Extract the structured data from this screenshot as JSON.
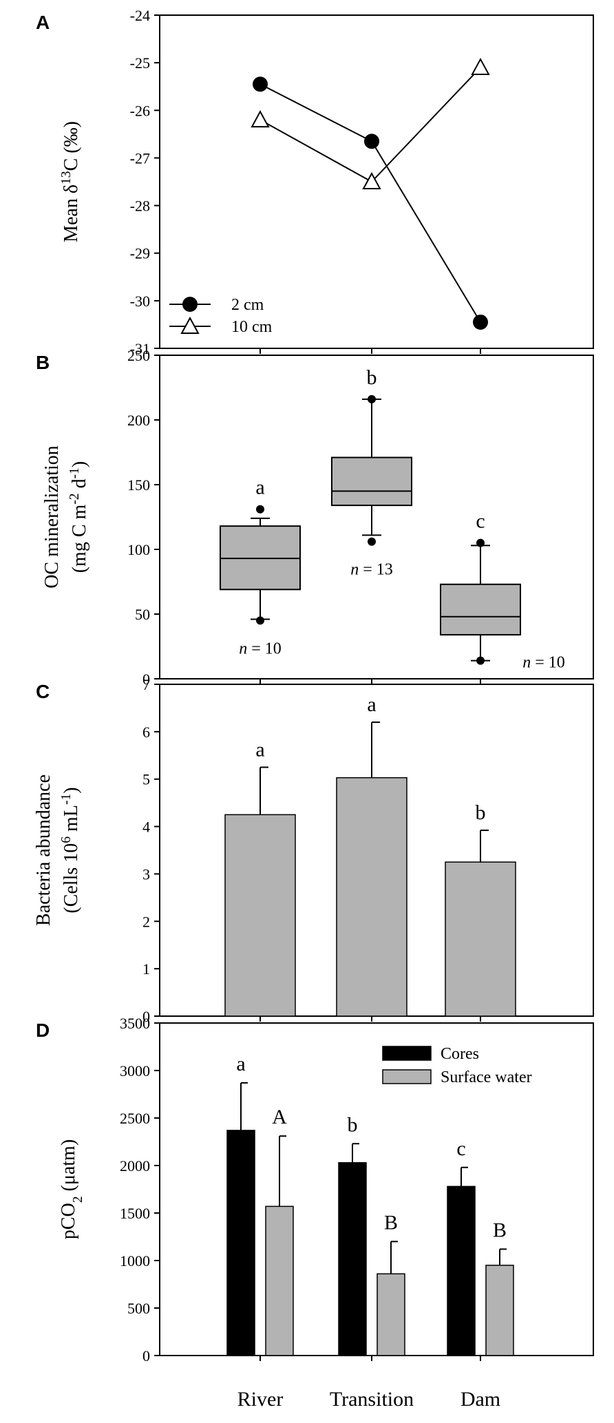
{
  "chart_data": [
    {
      "panel": "A",
      "type": "line",
      "ylabel": "Mean δ13C (‰)",
      "ylabel_parts": [
        "Mean δ",
        "13",
        "C (‰)"
      ],
      "ylim": [
        -31,
        -24
      ],
      "yticks": [
        -31,
        -30,
        -29,
        -28,
        -27,
        -26,
        -25,
        -24
      ],
      "ytick_labels": [
        "-31",
        "-30",
        "-29",
        "-28",
        "-27",
        "-26",
        "-25",
        "-24"
      ],
      "categories": [
        "River",
        "Transition",
        "Dam"
      ],
      "series": [
        {
          "name": "2 cm",
          "marker": "filled-circle",
          "values": [
            -25.45,
            -26.65,
            -30.45
          ]
        },
        {
          "name": "10 cm",
          "marker": "open-triangle",
          "values": [
            -26.2,
            -27.5,
            -25.1
          ]
        }
      ],
      "legend_position": "bottom-left"
    },
    {
      "panel": "B",
      "type": "box",
      "ylabel_line1": "OC mineralization",
      "ylabel_line2_parts": [
        "(mg C m",
        "-2",
        " d",
        "-1",
        ")"
      ],
      "ylim": [
        0,
        250
      ],
      "yticks": [
        0,
        50,
        100,
        150,
        200,
        250
      ],
      "ytick_labels": [
        "0",
        "50",
        "100",
        "150",
        "200",
        "250"
      ],
      "categories": [
        "River",
        "Transition",
        "Dam"
      ],
      "boxes": [
        {
          "q1": 69,
          "median": 93,
          "q3": 118,
          "whisker_low": 46,
          "whisker_high": 124,
          "outliers": [
            45,
            131
          ],
          "sig": "a",
          "n_prefix": "n",
          "n_text": " = 10"
        },
        {
          "q1": 134,
          "median": 145,
          "q3": 171,
          "whisker_low": 111,
          "whisker_high": 216,
          "outliers": [
            106,
            216
          ],
          "sig": "b",
          "n_prefix": "n",
          "n_text": " = 13"
        },
        {
          "q1": 34,
          "median": 48,
          "q3": 73,
          "whisker_low": 14,
          "whisker_high": 103,
          "outliers": [
            14,
            105
          ],
          "sig": "c",
          "n_prefix": "n",
          "n_text": " = 10"
        }
      ]
    },
    {
      "panel": "C",
      "type": "bar",
      "ylabel_line1": "Bacteria abundance",
      "ylabel_line2_parts": [
        "(Cells 10",
        "6",
        " mL",
        "-1",
        ")"
      ],
      "ylim": [
        0,
        7
      ],
      "yticks": [
        0,
        1,
        2,
        3,
        4,
        5,
        6,
        7
      ],
      "ytick_labels": [
        "0",
        "1",
        "2",
        "3",
        "4",
        "5",
        "6",
        "7"
      ],
      "categories": [
        "River",
        "Transition",
        "Dam"
      ],
      "values": [
        4.25,
        5.03,
        3.25
      ],
      "errors": [
        1.0,
        1.17,
        0.67
      ],
      "sig": [
        "a",
        "a",
        "b"
      ]
    },
    {
      "panel": "D",
      "type": "bar",
      "ylabel_parts": [
        "pCO",
        "2",
        " (μatm)"
      ],
      "ylim": [
        0,
        3500
      ],
      "yticks": [
        0,
        500,
        1000,
        1500,
        2000,
        2500,
        3000,
        3500
      ],
      "ytick_labels": [
        "0",
        "500",
        "1000",
        "1500",
        "2000",
        "2500",
        "3000",
        "3500"
      ],
      "categories": [
        "River",
        "Transition",
        "Dam"
      ],
      "series": [
        {
          "name": "Cores",
          "color": "#000000",
          "values": [
            2370,
            2030,
            1780
          ],
          "errors": [
            500,
            200,
            200
          ],
          "sig": [
            "a",
            "b",
            "c"
          ]
        },
        {
          "name": "Surface water",
          "color": "#b3b3b3",
          "values": [
            1570,
            860,
            950
          ],
          "errors": [
            740,
            340,
            170
          ],
          "sig": [
            "A",
            "B",
            "B"
          ]
        }
      ],
      "legend_position": "top-right"
    }
  ],
  "panel_letters": [
    "A",
    "B",
    "C",
    "D"
  ],
  "x_categories": [
    "River",
    "Transition",
    "Dam"
  ]
}
